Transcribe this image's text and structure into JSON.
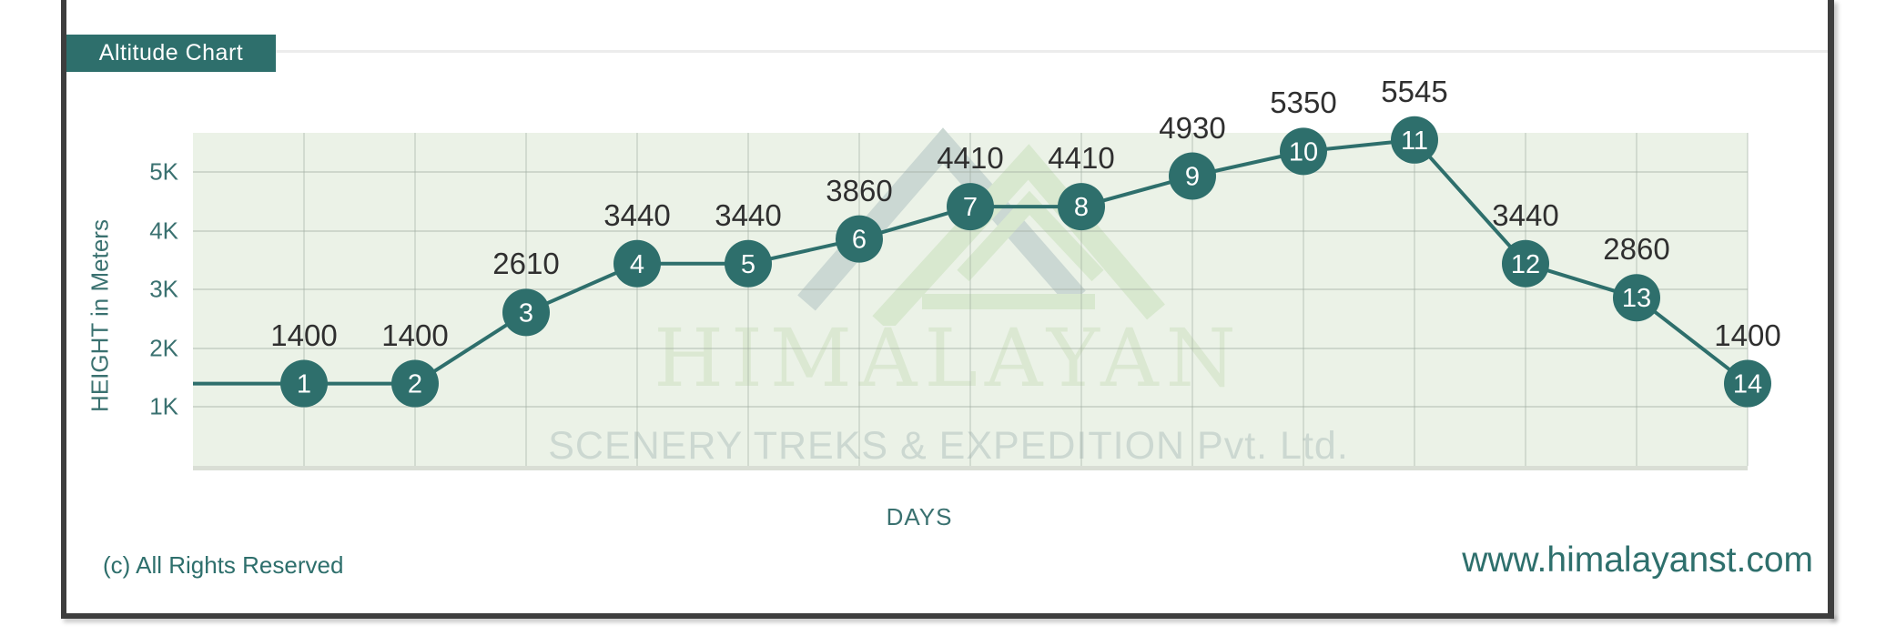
{
  "window": {
    "title_badge": "Altitude Chart"
  },
  "chart_data": {
    "type": "line",
    "title": "Altitude Chart",
    "xlabel": "DAYS",
    "ylabel": "HEIGHT in Meters",
    "x": [
      1,
      2,
      3,
      4,
      5,
      6,
      7,
      8,
      9,
      10,
      11,
      12,
      13,
      14
    ],
    "values": [
      1400,
      1400,
      2610,
      3440,
      3440,
      3860,
      4410,
      4410,
      4930,
      5350,
      5545,
      3440,
      2860,
      1400
    ],
    "point_labels": [
      "1",
      "2",
      "3",
      "4",
      "5",
      "6",
      "7",
      "8",
      "9",
      "10",
      "11",
      "12",
      "13",
      "14"
    ],
    "value_labels": [
      "1400",
      "1400",
      "2610",
      "3440",
      "3440",
      "3860",
      "4410",
      "4410",
      "4930",
      "5350",
      "5545",
      "3440",
      "2860",
      "1400"
    ],
    "y_ticks": [
      {
        "label": "1K",
        "value": 1000
      },
      {
        "label": "2K",
        "value": 2000
      },
      {
        "label": "3K",
        "value": 3000
      },
      {
        "label": "4K",
        "value": 4000
      },
      {
        "label": "5K",
        "value": 5000
      }
    ],
    "ylim": [
      0,
      5700
    ],
    "grid": "both",
    "legend": "none"
  },
  "watermark": {
    "line1": "HIMALAYAN",
    "line2": "SCENERY TREKS & EXPEDITION Pvt. Ltd.",
    "logo": "mountain-peaks-logo"
  },
  "footer": {
    "copyright": "(c) All Rights Reserved",
    "website": "www.himalayanst.com"
  },
  "colors": {
    "accent_teal": "#2e6f6c",
    "plot_background": "#ebf2e7",
    "frame_dark": "#3e3e3e",
    "gridline": "#a8b4a8",
    "data_label": "#2f2f2f",
    "watermark_green": "#dbe8d2",
    "watermark_gray": "#ccd8d1",
    "marker_text": "#ffffff"
  }
}
